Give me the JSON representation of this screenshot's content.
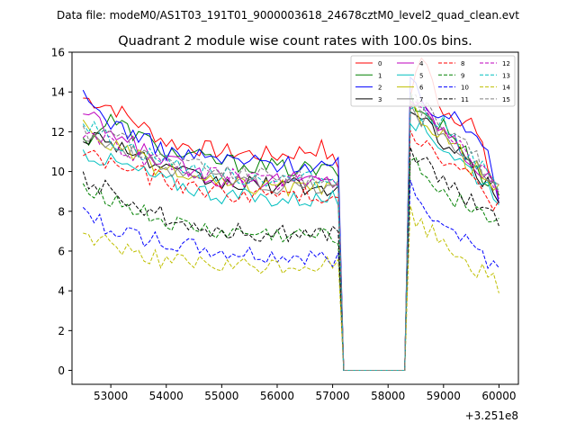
{
  "chart_data": {
    "type": "line",
    "suptitle": "Data file: modeM0/AS1T03_191T01_9000003618_24678cztM0_level2_quad_clean.evt",
    "title": "Quadrant 2 module wise count rates with 100.0s bins.",
    "xlabel": "",
    "ylabel": "",
    "x_offset_label": "+3.251e8",
    "xlim": [
      52300,
      60350
    ],
    "ylim": [
      -0.7,
      16
    ],
    "xticks": [
      53000,
      54000,
      55000,
      56000,
      57000,
      58000,
      59000,
      60000
    ],
    "xtick_labels": [
      "53000",
      "54000",
      "55000",
      "56000",
      "57000",
      "58000",
      "59000",
      "60000"
    ],
    "yticks": [
      0,
      2,
      4,
      6,
      8,
      10,
      12,
      14,
      16
    ],
    "ytick_labels": [
      "0",
      "2",
      "4",
      "6",
      "8",
      "10",
      "12",
      "14",
      "16"
    ],
    "legend_position": "top-right",
    "gap": [
      57200,
      58300
    ],
    "seg1": [
      52500,
      57100
    ],
    "seg2": [
      58400,
      60000
    ],
    "series": [
      {
        "name": "0",
        "color": "#ff0000",
        "dashed": false,
        "keys": [
          [
            52500,
            13.7
          ],
          [
            53000,
            13.3
          ],
          [
            54000,
            11.5
          ],
          [
            55000,
            11.0
          ],
          [
            56000,
            10.8
          ],
          [
            56800,
            11.2
          ],
          [
            57100,
            10.2
          ]
        ],
        "keys2": [
          [
            58400,
            14.0
          ],
          [
            58600,
            15.8
          ],
          [
            59000,
            13.1
          ],
          [
            59500,
            12.5
          ],
          [
            60000,
            8.8
          ]
        ]
      },
      {
        "name": "1",
        "color": "#008000",
        "dashed": false,
        "keys": [
          [
            52500,
            11.5
          ],
          [
            53000,
            12.6
          ],
          [
            54000,
            11.0
          ],
          [
            55000,
            10.5
          ],
          [
            56000,
            10.2
          ],
          [
            57100,
            10.0
          ]
        ],
        "keys2": [
          [
            58400,
            13.5
          ],
          [
            58600,
            13.0
          ],
          [
            59000,
            12.3
          ],
          [
            60000,
            8.9
          ]
        ]
      },
      {
        "name": "2",
        "color": "#0000ff",
        "dashed": false,
        "keys": [
          [
            52500,
            13.7
          ],
          [
            53000,
            12.5
          ],
          [
            54000,
            11.0
          ],
          [
            55000,
            10.6
          ],
          [
            56000,
            10.4
          ],
          [
            57100,
            10.3
          ]
        ],
        "keys2": [
          [
            58400,
            14.5
          ],
          [
            58600,
            13.5
          ],
          [
            59000,
            12.9
          ],
          [
            59800,
            11.5
          ],
          [
            60000,
            8.6
          ]
        ]
      },
      {
        "name": "3",
        "color": "#000000",
        "dashed": false,
        "keys": [
          [
            52500,
            11.8
          ],
          [
            53000,
            11.6
          ],
          [
            54000,
            10.0
          ],
          [
            55000,
            9.4
          ],
          [
            56000,
            9.3
          ],
          [
            57100,
            9.1
          ]
        ],
        "keys2": [
          [
            58400,
            13.0
          ],
          [
            58600,
            12.4
          ],
          [
            59000,
            11.6
          ],
          [
            60000,
            8.7
          ]
        ]
      },
      {
        "name": "4",
        "color": "#bf00bf",
        "dashed": false,
        "keys": [
          [
            52500,
            13.0
          ],
          [
            53000,
            11.9
          ],
          [
            54000,
            10.5
          ],
          [
            55000,
            9.6
          ],
          [
            56000,
            9.6
          ],
          [
            57100,
            9.5
          ]
        ],
        "keys2": [
          [
            58400,
            13.8
          ],
          [
            58600,
            13.2
          ],
          [
            59000,
            12.1
          ],
          [
            60000,
            9.0
          ]
        ]
      },
      {
        "name": "5",
        "color": "#00bfbf",
        "dashed": false,
        "keys": [
          [
            52500,
            11.0
          ],
          [
            53000,
            10.5
          ],
          [
            54000,
            9.5
          ],
          [
            55000,
            8.8
          ],
          [
            56000,
            8.6
          ],
          [
            57100,
            8.6
          ]
        ],
        "keys2": [
          [
            58400,
            12.9
          ],
          [
            58600,
            12.2
          ],
          [
            59000,
            11.3
          ],
          [
            60000,
            8.8
          ]
        ]
      },
      {
        "name": "6",
        "color": "#bfbf00",
        "dashed": false,
        "keys": [
          [
            52500,
            12.3
          ],
          [
            53000,
            11.3
          ],
          [
            54000,
            10.0
          ],
          [
            55000,
            9.3
          ],
          [
            56000,
            9.2
          ],
          [
            57100,
            9.0
          ]
        ],
        "keys2": [
          [
            58400,
            13.2
          ],
          [
            58600,
            12.8
          ],
          [
            59000,
            11.8
          ],
          [
            60000,
            8.9
          ]
        ]
      },
      {
        "name": "7",
        "color": "#808080",
        "dashed": false,
        "keys": [
          [
            52500,
            12.0
          ],
          [
            53000,
            11.4
          ],
          [
            54000,
            10.2
          ],
          [
            55000,
            9.6
          ],
          [
            56000,
            9.3
          ],
          [
            57100,
            9.2
          ]
        ],
        "keys2": [
          [
            58400,
            13.4
          ],
          [
            58600,
            12.6
          ],
          [
            59000,
            12.0
          ],
          [
            60000,
            9.0
          ]
        ]
      },
      {
        "name": "8",
        "color": "#ff0000",
        "dashed": true,
        "keys": [
          [
            52500,
            11.0
          ],
          [
            53000,
            10.4
          ],
          [
            54000,
            9.5
          ],
          [
            55000,
            8.9
          ],
          [
            56000,
            8.8
          ],
          [
            57100,
            8.8
          ]
        ],
        "keys2": [
          [
            58400,
            12.3
          ],
          [
            58600,
            11.5
          ],
          [
            59000,
            10.8
          ],
          [
            60000,
            8.3
          ]
        ]
      },
      {
        "name": "9",
        "color": "#008000",
        "dashed": true,
        "keys": [
          [
            52500,
            9.4
          ],
          [
            53000,
            8.6
          ],
          [
            54000,
            7.4
          ],
          [
            55000,
            6.9
          ],
          [
            56000,
            6.8
          ],
          [
            57100,
            6.7
          ]
        ],
        "keys2": [
          [
            58400,
            11.0
          ],
          [
            58600,
            10.0
          ],
          [
            59000,
            9.0
          ],
          [
            60000,
            7.5
          ]
        ]
      },
      {
        "name": "10",
        "color": "#0000ff",
        "dashed": true,
        "keys": [
          [
            52500,
            8.0
          ],
          [
            53000,
            7.1
          ],
          [
            54000,
            6.4
          ],
          [
            55000,
            5.9
          ],
          [
            56000,
            5.7
          ],
          [
            57100,
            5.6
          ]
        ],
        "keys2": [
          [
            58400,
            9.3
          ],
          [
            58600,
            8.4
          ],
          [
            59000,
            7.6
          ],
          [
            60000,
            5.1
          ]
        ]
      },
      {
        "name": "11",
        "color": "#000000",
        "dashed": true,
        "keys": [
          [
            52500,
            9.6
          ],
          [
            53000,
            9.0
          ],
          [
            54000,
            7.7
          ],
          [
            55000,
            7.0
          ],
          [
            56000,
            6.9
          ],
          [
            57100,
            6.9
          ]
        ],
        "keys2": [
          [
            58400,
            11.2
          ],
          [
            58600,
            10.5
          ],
          [
            59000,
            9.5
          ],
          [
            60000,
            7.3
          ]
        ]
      },
      {
        "name": "12",
        "color": "#bf00bf",
        "dashed": true,
        "keys": [
          [
            52500,
            12.0
          ],
          [
            53000,
            11.3
          ],
          [
            54000,
            10.3
          ],
          [
            55000,
            9.8
          ],
          [
            56000,
            9.5
          ],
          [
            57100,
            9.4
          ]
        ],
        "keys2": [
          [
            58400,
            13.5
          ],
          [
            58600,
            13.0
          ],
          [
            59000,
            12.2
          ],
          [
            60000,
            9.1
          ]
        ]
      },
      {
        "name": "13",
        "color": "#00bfbf",
        "dashed": true,
        "keys": [
          [
            52500,
            12.5
          ],
          [
            53000,
            11.6
          ],
          [
            54000,
            10.5
          ],
          [
            55000,
            9.8
          ],
          [
            56000,
            9.6
          ],
          [
            57100,
            9.6
          ]
        ],
        "keys2": [
          [
            58400,
            13.6
          ],
          [
            58600,
            13.1
          ],
          [
            59000,
            12.3
          ],
          [
            60000,
            9.2
          ]
        ]
      },
      {
        "name": "14",
        "color": "#bfbf00",
        "dashed": true,
        "keys": [
          [
            52500,
            6.8
          ],
          [
            53000,
            6.4
          ],
          [
            54000,
            5.5
          ],
          [
            55000,
            5.2
          ],
          [
            56000,
            5.2
          ],
          [
            57100,
            5.3
          ]
        ],
        "keys2": [
          [
            58400,
            8.0
          ],
          [
            58600,
            7.2
          ],
          [
            59000,
            6.5
          ],
          [
            60000,
            4.2
          ]
        ]
      },
      {
        "name": "15",
        "color": "#808080",
        "dashed": true,
        "keys": [
          [
            52500,
            12.0
          ],
          [
            53000,
            11.7
          ],
          [
            54000,
            10.6
          ],
          [
            55000,
            10.0
          ],
          [
            56000,
            9.8
          ],
          [
            57100,
            9.5
          ]
        ],
        "keys2": [
          [
            58400,
            13.8
          ],
          [
            58600,
            13.3
          ],
          [
            59000,
            12.4
          ],
          [
            60000,
            9.4
          ]
        ]
      }
    ]
  }
}
